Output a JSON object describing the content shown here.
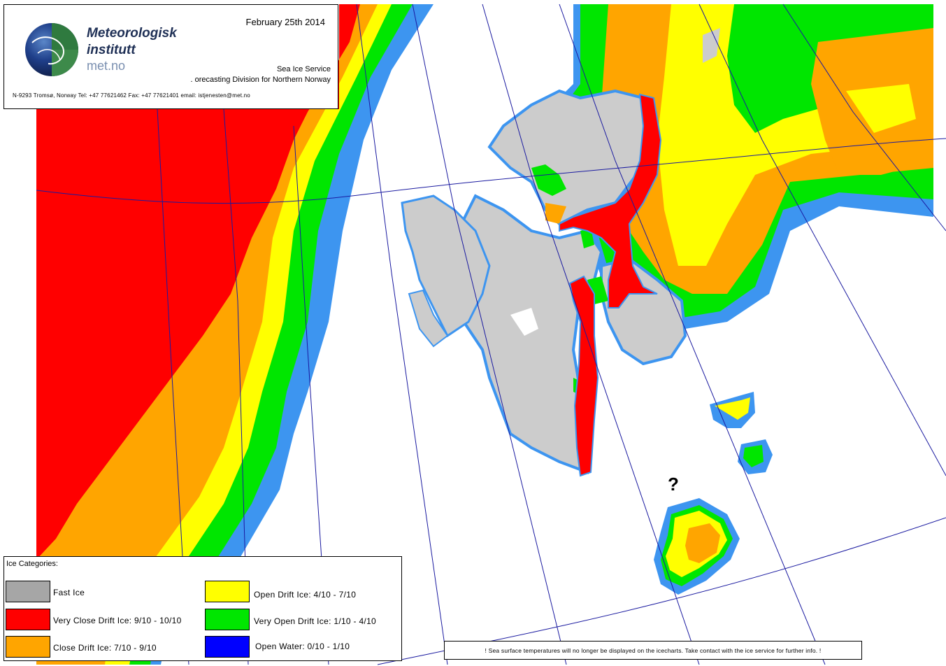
{
  "header": {
    "date": "February 25th 2014",
    "org_line1": "Meteorologisk",
    "org_line2": "institutt",
    "org_line3": "met.no",
    "service_line1": "Sea Ice Service",
    "service_line2": ". orecasting Division for Northern Norway",
    "contact": "N-9293 Tromsø, Norway   Tel: +47 77621462   Fax: +47 77621401   email: istjenesten@met.no"
  },
  "legend": {
    "title": "Ice Categories:",
    "items": [
      {
        "label": "Fast Ice",
        "color": "#a6a6a6"
      },
      {
        "label": "Very Close Drift Ice:  9/10 - 10/10",
        "color": "#ff0000"
      },
      {
        "label": "Close Drift Ice:  7/10 - 9/10",
        "color": "#ffa500"
      },
      {
        "label": "Open Drift Ice:  4/10 - 7/10",
        "color": "#ffff00"
      },
      {
        "label": "Very Open Drift Ice:  1/10 - 4/10",
        "color": "#00e600"
      },
      {
        "label": "Open Water:  0/10 - 1/10",
        "color": "#0000ff"
      }
    ]
  },
  "map": {
    "land_color": "#cccccc",
    "fringe_color": "#3d95f0",
    "graticule_color": "#1a1aa0",
    "marker": "?"
  },
  "notice": "!  Sea surface temperatures will no longer be displayed on the icecharts.  Take contact with the ice service for further info.  !"
}
